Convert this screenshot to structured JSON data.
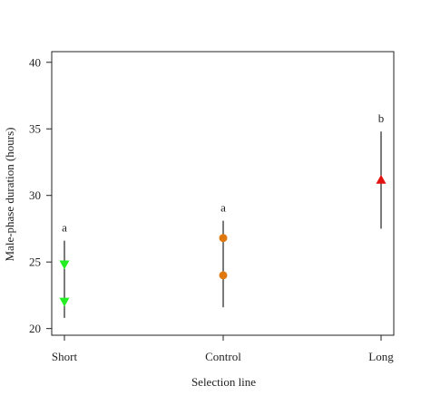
{
  "chart_data": {
    "type": "scatter",
    "xlabel": "Selection line",
    "ylabel": "Male-phase duration (hours)",
    "categories": [
      "Short",
      "Control",
      "Long"
    ],
    "ylim": [
      19.5,
      40.8
    ],
    "yticks": [
      "20",
      "25",
      "30",
      "35",
      "40"
    ],
    "grid": false,
    "series": [
      {
        "category": "Short",
        "marker": "triangle-down",
        "color": "#22ee22",
        "points": [
          24.8,
          22.0
        ],
        "error_bar": [
          20.8,
          26.6
        ],
        "letter": "a"
      },
      {
        "category": "Control",
        "marker": "circle",
        "color": "#e07810",
        "points": [
          26.8,
          24.0
        ],
        "error_bar": [
          21.6,
          28.1
        ],
        "letter": "a"
      },
      {
        "category": "Long",
        "marker": "triangle-up",
        "color": "#e41111",
        "points": [
          31.2
        ],
        "error_bar": [
          27.5,
          34.8
        ],
        "letter": "b"
      }
    ]
  }
}
